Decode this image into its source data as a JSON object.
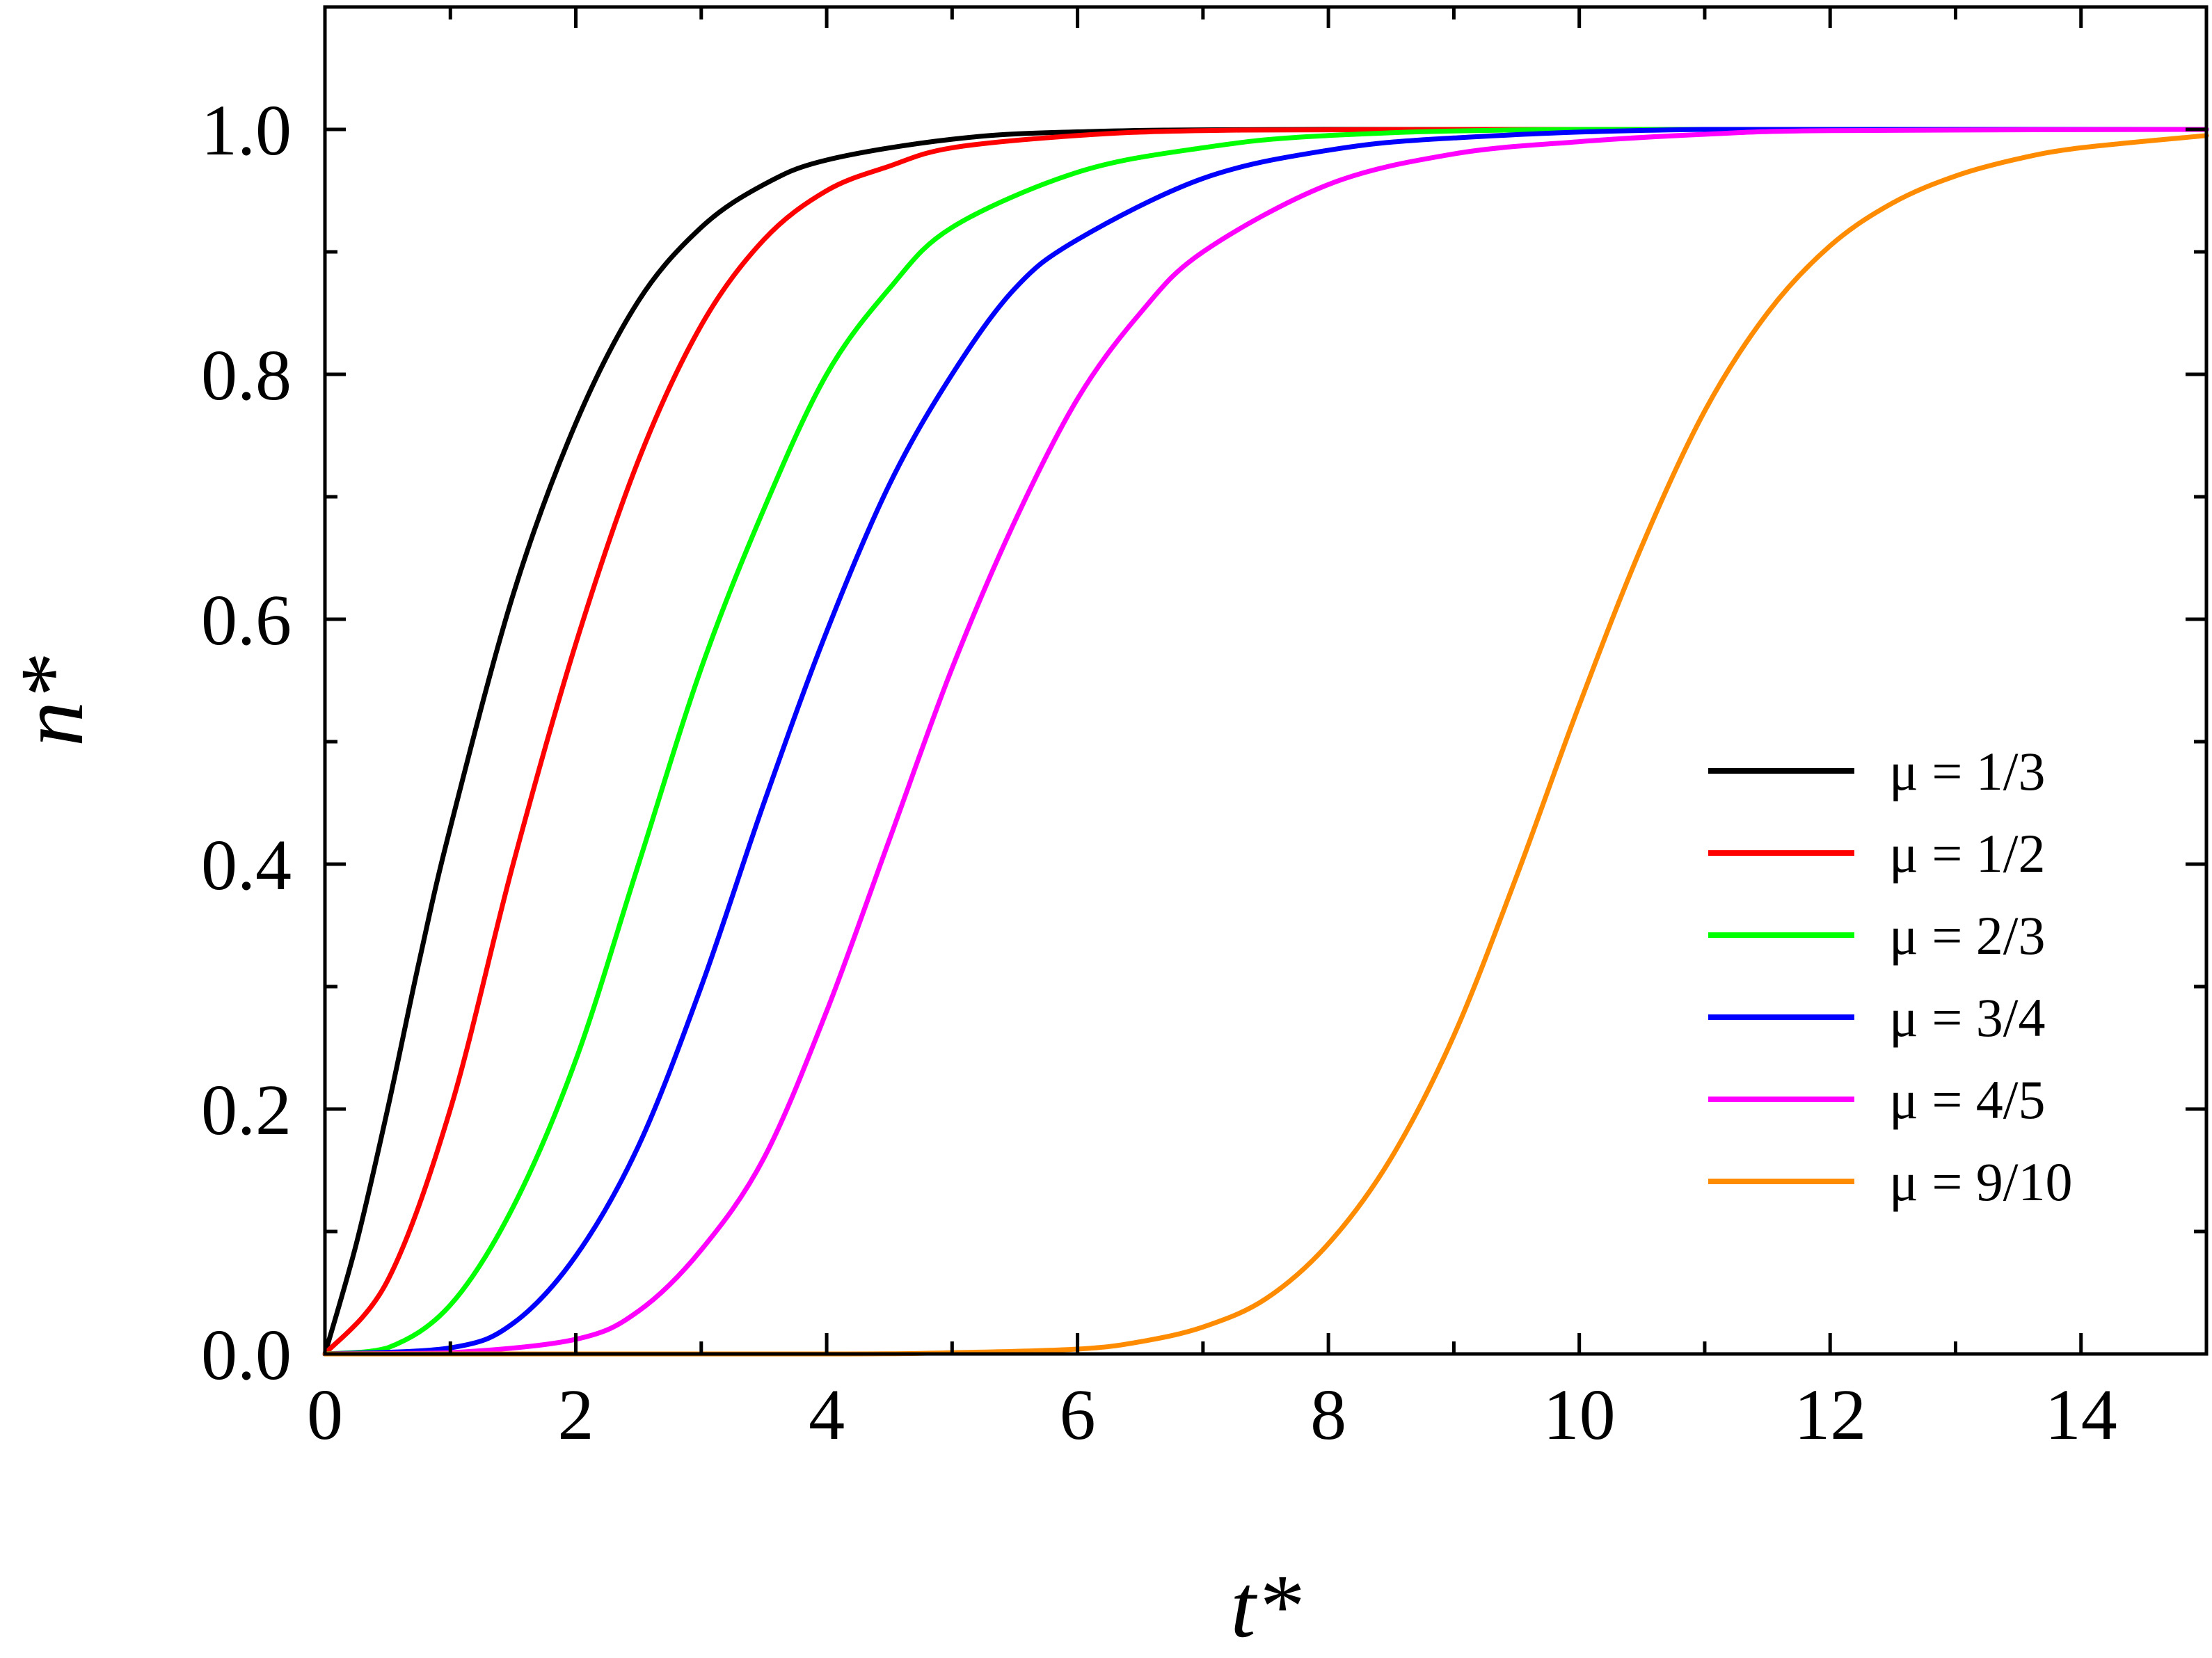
{
  "chart_data": {
    "type": "line",
    "xlabel": "t*",
    "ylabel": "n*",
    "xlim": [
      0,
      15
    ],
    "ylim": [
      0,
      1.1
    ],
    "xticks": [
      "0",
      "2",
      "4",
      "6",
      "8",
      "10",
      "12",
      "14"
    ],
    "yticks": [
      "0.0",
      "0.2",
      "0.4",
      "0.6",
      "0.8",
      "1.0"
    ],
    "grid": false,
    "legend_position": "right-center",
    "series": [
      {
        "name": "μ = 1/3",
        "color": "#000000",
        "x": [
          0,
          0.25,
          0.5,
          0.75,
          1,
          1.5,
          2,
          2.5,
          3,
          3.5,
          4,
          5,
          6,
          8,
          15
        ],
        "y": [
          0,
          0.09,
          0.2,
          0.32,
          0.43,
          0.62,
          0.76,
          0.86,
          0.92,
          0.955,
          0.975,
          0.992,
          0.998,
          1.0,
          1.0
        ]
      },
      {
        "name": "μ = 1/2",
        "color": "#ff0000",
        "x": [
          0,
          0.5,
          1,
          1.5,
          2,
          2.5,
          3,
          3.5,
          4,
          4.5,
          5,
          6,
          7,
          9,
          15
        ],
        "y": [
          0,
          0.06,
          0.2,
          0.4,
          0.58,
          0.73,
          0.84,
          0.91,
          0.95,
          0.97,
          0.985,
          0.995,
          0.999,
          1.0,
          1.0
        ]
      },
      {
        "name": "μ = 2/3",
        "color": "#00ff00",
        "x": [
          0,
          0.5,
          1,
          1.5,
          2,
          2.5,
          3,
          3.5,
          4,
          4.5,
          5,
          6,
          7,
          8,
          10,
          15
        ],
        "y": [
          0,
          0.005,
          0.04,
          0.12,
          0.24,
          0.4,
          0.56,
          0.69,
          0.8,
          0.87,
          0.92,
          0.965,
          0.985,
          0.995,
          1.0,
          1.0
        ]
      },
      {
        "name": "μ = 3/4",
        "color": "#0000ff",
        "x": [
          0,
          1,
          1.5,
          2,
          2.5,
          3,
          3.5,
          4,
          4.5,
          5,
          5.5,
          6,
          7,
          8,
          9,
          11,
          15
        ],
        "y": [
          0,
          0.005,
          0.025,
          0.08,
          0.17,
          0.3,
          0.45,
          0.59,
          0.71,
          0.8,
          0.87,
          0.91,
          0.96,
          0.983,
          0.993,
          1.0,
          1.0
        ]
      },
      {
        "name": "μ = 4/5",
        "color": "#ff00ff",
        "x": [
          0,
          1,
          2,
          2.5,
          3,
          3.5,
          4,
          4.5,
          5,
          5.5,
          6,
          6.5,
          7,
          8,
          9,
          10,
          11,
          12,
          15
        ],
        "y": [
          0,
          0.001,
          0.012,
          0.035,
          0.085,
          0.16,
          0.28,
          0.42,
          0.56,
          0.68,
          0.78,
          0.85,
          0.9,
          0.955,
          0.98,
          0.99,
          0.996,
          0.999,
          1.0
        ]
      },
      {
        "name": "μ = 9/10",
        "color": "#ff8c00",
        "x": [
          0,
          4,
          5,
          6,
          6.5,
          7,
          7.5,
          8,
          8.5,
          9,
          9.5,
          10,
          10.5,
          11,
          11.5,
          12,
          12.5,
          13,
          13.5,
          14,
          15
        ],
        "y": [
          0,
          0,
          0.001,
          0.004,
          0.01,
          0.022,
          0.045,
          0.09,
          0.16,
          0.26,
          0.39,
          0.53,
          0.66,
          0.77,
          0.85,
          0.905,
          0.94,
          0.962,
          0.976,
          0.985,
          0.995
        ]
      }
    ]
  }
}
